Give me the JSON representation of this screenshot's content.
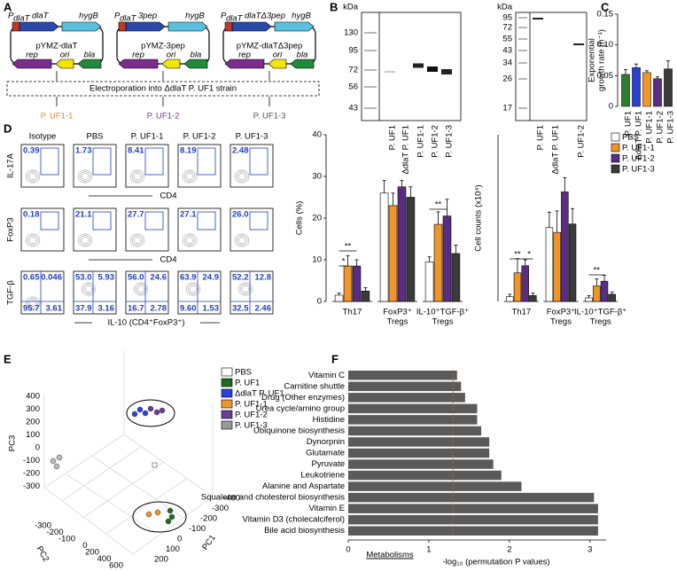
{
  "panel_labels": [
    "A",
    "B",
    "C",
    "D",
    "E",
    "F"
  ],
  "constructs": [
    {
      "promoter": "P",
      "promoter_sub": "dlaT",
      "insert": "dlaT",
      "marker": "hygB",
      "plasmid": "pYMZ-dlaT",
      "rep": "rep",
      "ori": "ori",
      "bla": "bla"
    },
    {
      "promoter": "P",
      "promoter_sub": "dlaT",
      "insert": "3pep",
      "marker": "hygB",
      "plasmid": "pYMZ-3pep",
      "rep": "rep",
      "ori": "ori",
      "bla": "bla"
    },
    {
      "promoter": "P",
      "promoter_sub": "dlaT",
      "insert": "dlaTΔ3pep",
      "marker": "hygB",
      "plasmid": "pYMZ-dlaTΔ3pep",
      "rep": "rep",
      "ori": "ori",
      "bla": "bla"
    }
  ],
  "electroporation": "Electroporation into ΔdlaT P. UF1 strain",
  "strains": [
    {
      "label": "P. UF1-1",
      "color": "#e8892b"
    },
    {
      "label": "P. UF1-2",
      "color": "#6a3d9a"
    },
    {
      "label": "P. UF1-3",
      "color": "#555555"
    }
  ],
  "blots": [
    {
      "unit": "kDa",
      "markers": [
        "130",
        "95",
        "72",
        "56",
        "43"
      ],
      "lanes": [
        "P. UF1",
        "ΔdlaT P. UF1",
        "P. UF1-1",
        "P. UF1-2",
        "P. UF1-3"
      ]
    },
    {
      "unit": "kDa",
      "markers": [
        "95",
        "72",
        "55",
        "43",
        "34",
        "26",
        "17"
      ],
      "lanes": [
        "P. UF1",
        "ΔdlaT P. UF1",
        "P. UF1-2"
      ]
    }
  ],
  "flow": {
    "columns": [
      "Isotype",
      "PBS",
      "P. UF1-1",
      "P. UF1-2",
      "P. UF1-3"
    ],
    "rows": [
      {
        "y_label": "IL-17A",
        "x_label": "CD4",
        "gates": [
          "0.39",
          "1.73",
          "8.41",
          "8.19",
          "2.48"
        ]
      },
      {
        "y_label": "FoxP3",
        "x_label": "CD4",
        "gates": [
          "0.18",
          "21.1",
          "27.7",
          "27.1",
          "26.0"
        ]
      },
      {
        "y_label": "TGF-β",
        "x_label": "IL-10 (CD4⁺FoxP3⁺)",
        "quadrants": [
          [
            "0.65",
            "0.046",
            "95.7",
            "3.61"
          ],
          [
            "53.0",
            "5.93",
            "37.9",
            "3.16"
          ],
          [
            "56.0",
            "24.6",
            "16.7",
            "2.78"
          ],
          [
            "63.9",
            "24.9",
            "9.60",
            "1.53"
          ],
          [
            "52.2",
            "12.8",
            "32.5",
            "2.46"
          ]
        ]
      }
    ]
  },
  "pca": {
    "axes": {
      "x": "PC1",
      "y": "PC2",
      "z": "PC3"
    },
    "pc3_ticks": [
      "400",
      "300",
      "200",
      "100",
      "0",
      "-100",
      "-200",
      "-300"
    ],
    "pc2_ticks": [
      "-300",
      "-200",
      "-100",
      "0",
      "200",
      "400",
      "600"
    ],
    "pc1_ticks": [
      "-400",
      "-300",
      "-200",
      "-100",
      "0",
      "100",
      "200"
    ],
    "legend": [
      {
        "name": "PBS",
        "color": "#ffffff"
      },
      {
        "name": "P. UF1",
        "color": "#1f6b1f"
      },
      {
        "name": "ΔdlaT P. UF1",
        "color": "#2b3fe0"
      },
      {
        "name": "P. UF1-1",
        "color": "#f0952a"
      },
      {
        "name": "P. UF1-2",
        "color": "#6a3d9a"
      },
      {
        "name": "P. UF1-3",
        "color": "#999999"
      }
    ]
  },
  "chart_data": [
    {
      "type": "bar",
      "y_label": [
        "Exponential",
        "growth rate (h⁻¹)"
      ],
      "categories": [
        "P. UF1",
        "ΔdlaT P. UF1",
        "P. UF1-1",
        "P. UF1-2",
        "P. UF1-3"
      ],
      "values": [
        0.052,
        0.063,
        0.055,
        0.045,
        0.061
      ],
      "errors": [
        0.008,
        0.006,
        0.003,
        0.003,
        0.013
      ],
      "colors": [
        "#2e7d32",
        "#2b3fd1",
        "#f0952a",
        "#5a2d82",
        "#3a3a3a"
      ],
      "ylim": [
        0,
        0.15
      ],
      "yticks": [
        0,
        0.05,
        {
          "value": 0.1,
          "label": "0.10"
        },
        0.15
      ]
    },
    {
      "type": "grouped-bar",
      "y_label": "Cells (%)",
      "categories": [
        [
          "Th17"
        ],
        [
          "FoxP3⁺",
          "Tregs"
        ],
        [
          "IL-10⁺TGF-β⁺",
          "Tregs"
        ]
      ],
      "series": [
        {
          "color": "#ffffff",
          "values": [
            1.5,
            26,
            9.5
          ],
          "errors": [
            0.5,
            3,
            1.2
          ]
        },
        {
          "color": "#f0952a",
          "values": [
            8.5,
            23,
            18.5
          ],
          "errors": [
            2.5,
            3,
            3
          ]
        },
        {
          "color": "#5a2d82",
          "values": [
            8.5,
            27.5,
            20.5
          ],
          "errors": [
            1.5,
            1.5,
            4
          ]
        },
        {
          "color": "#3a3a3a",
          "values": [
            2.5,
            25,
            11.5
          ],
          "errors": [
            0.8,
            2.5,
            2
          ]
        }
      ],
      "ylim": [
        0,
        40
      ],
      "yticks": [
        0,
        10,
        20,
        30,
        40
      ],
      "annotations": [
        "*",
        "**",
        "**"
      ]
    },
    {
      "type": "grouped-bar",
      "y_label": "Cell counts (x10⁴)",
      "categories": [
        [
          "Th17"
        ],
        [
          "FoxP3⁺",
          "Tregs"
        ],
        [
          "IL-10⁺TGF-β⁺",
          "Tregs"
        ]
      ],
      "series": [
        {
          "name": "PBS",
          "color": "#ffffff",
          "values": [
            0.04,
            0.62,
            0.03
          ],
          "errors": [
            0.02,
            0.13,
            0.02
          ]
        },
        {
          "name": "P. UF1-1",
          "color": "#f0952a",
          "values": [
            0.24,
            0.58,
            0.13
          ],
          "errors": [
            0.12,
            0.18,
            0.06
          ]
        },
        {
          "name": "P. UF1-2",
          "color": "#5a2d82",
          "values": [
            0.3,
            0.92,
            0.17
          ],
          "errors": [
            0.05,
            0.12,
            0.05
          ]
        },
        {
          "name": "P. UF1-3",
          "color": "#3a3a3a",
          "values": [
            0.05,
            0.65,
            0.06
          ],
          "errors": [
            0.02,
            0.13,
            0.02
          ]
        }
      ],
      "ylim": [
        0,
        1.4
      ],
      "legend": true,
      "annotations": [
        "**",
        "*",
        "**"
      ]
    },
    {
      "type": "hbar",
      "x_label": "-log₁₀ (permutation P values)",
      "y_label": "Metabolisms",
      "categories": [
        "Vitamin C",
        "Carnitine shuttle",
        "Drug (Other enzymes)",
        "Urea cycle/amino group",
        "Histidine",
        "Ubiquinone biosynthesis",
        "Dynorpnin",
        "Glutamate",
        "Pyruvate",
        "Leukotriene",
        "Alanine and Aspartate",
        "Squalene and cholesterol biosynthesis",
        "Vitamin E",
        "Vitamin D3 (cholecalciferol)",
        "Bile acid biosynthesis"
      ],
      "values": [
        1.35,
        1.4,
        1.45,
        1.6,
        1.6,
        1.65,
        1.75,
        1.75,
        1.8,
        1.9,
        2.15,
        3.05,
        3.1,
        3.1,
        3.1
      ],
      "color": "#5a5a5a",
      "xlim": [
        0,
        3.2
      ],
      "xticks": [
        0,
        1,
        2,
        3
      ],
      "threshold": 1.3,
      "threshold_color": "#d9534f"
    }
  ]
}
